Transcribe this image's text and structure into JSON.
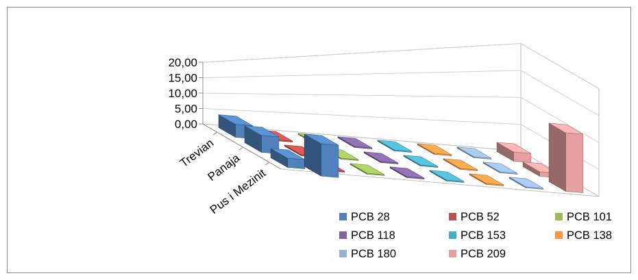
{
  "chart_data": {
    "type": "bar",
    "subtype": "3d-column",
    "categories": [
      "Trevian",
      "Panaja",
      "Pus i Mezinit"
    ],
    "series": [
      {
        "name": "PCB 28",
        "color": "#4F81BD",
        "values": [
          4.2,
          5.5,
          3.0
        ]
      },
      {
        "name": "PCB 52",
        "color": "#C0504D",
        "values": [
          0.0,
          0.0,
          0.0
        ]
      },
      {
        "name": "PCB 101",
        "color": "#9BBB59",
        "values": [
          0.0,
          0.0,
          0.0
        ]
      },
      {
        "name": "PCB 118",
        "color": "#8064A2",
        "values": [
          0.0,
          0.0,
          0.0
        ]
      },
      {
        "name": "PCB 153",
        "color": "#4BACC6",
        "values": [
          0.0,
          0.0,
          0.0
        ]
      },
      {
        "name": "PCB 138",
        "color": "#F79646",
        "values": [
          0.0,
          0.0,
          0.0
        ]
      },
      {
        "name": "PCB 180",
        "color": "#95B3D7",
        "values": [
          0.0,
          0.0,
          0.0
        ]
      },
      {
        "name": "PCB 209",
        "color": "#E6A0A0",
        "values": [
          3.0,
          1.5,
          19.0
        ]
      }
    ],
    "extra_front_bar": {
      "series": "PCB 28",
      "value": 10.5
    },
    "y_ticks": [
      "0,00",
      "5,00",
      "10,00",
      "15,00",
      "20,00"
    ],
    "ylim": [
      0,
      20
    ],
    "grid": true,
    "legend_position": "bottom-right"
  }
}
